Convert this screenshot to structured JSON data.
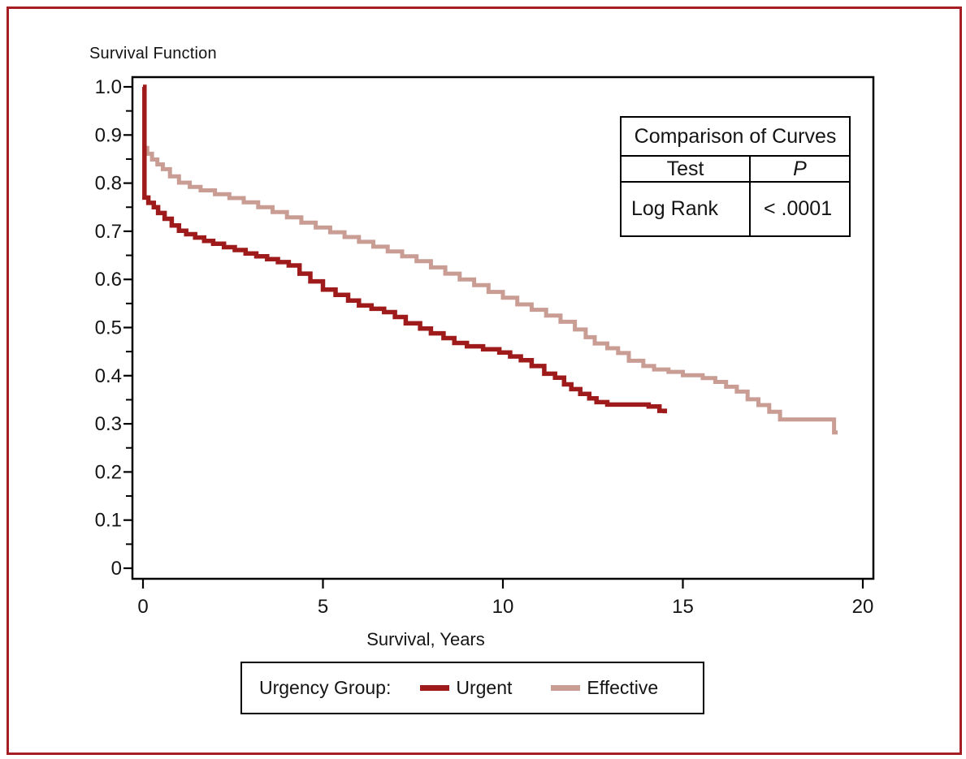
{
  "figure": {
    "title": "Survival Function",
    "border_color": "#a51e23",
    "background": "#ffffff"
  },
  "chart_data": {
    "type": "line",
    "subtype": "kaplan-meier-step",
    "title": "Survival Function",
    "xlabel": "Survival, Years",
    "ylabel": "",
    "xlim": [
      0,
      20
    ],
    "ylim": [
      0,
      1.0
    ],
    "grid": false,
    "legend_position": "bottom",
    "x_ticks": [
      {
        "value": 0,
        "label": "0"
      },
      {
        "value": 5,
        "label": "5"
      },
      {
        "value": 10,
        "label": "10"
      },
      {
        "value": 15,
        "label": "15"
      },
      {
        "value": 20,
        "label": "20"
      }
    ],
    "y_ticks": [
      {
        "value": 0,
        "label": "0"
      },
      {
        "value": 0.1,
        "label": "0.1"
      },
      {
        "value": 0.2,
        "label": "0.2"
      },
      {
        "value": 0.3,
        "label": "0.3"
      },
      {
        "value": 0.4,
        "label": "0.4"
      },
      {
        "value": 0.5,
        "label": "0.5"
      },
      {
        "value": 0.6,
        "label": "0.6"
      },
      {
        "value": 0.7,
        "label": "0.7"
      },
      {
        "value": 0.8,
        "label": "0.8"
      },
      {
        "value": 0.9,
        "label": "0.9"
      },
      {
        "value": 1.0,
        "label": "1.0"
      }
    ],
    "y_minor_ticks": [
      0.05,
      0.15,
      0.25,
      0.35,
      0.45,
      0.55,
      0.65,
      0.75,
      0.85,
      0.95
    ],
    "series": [
      {
        "name": "Effective",
        "color": "#c99c94",
        "points": [
          [
            0,
            1.0
          ],
          [
            0.04,
            0.873
          ],
          [
            0.12,
            0.861
          ],
          [
            0.25,
            0.849
          ],
          [
            0.4,
            0.839
          ],
          [
            0.55,
            0.829
          ],
          [
            0.75,
            0.814
          ],
          [
            1.0,
            0.801
          ],
          [
            1.3,
            0.792
          ],
          [
            1.6,
            0.785
          ],
          [
            2.0,
            0.777
          ],
          [
            2.4,
            0.769
          ],
          [
            2.8,
            0.76
          ],
          [
            3.2,
            0.75
          ],
          [
            3.6,
            0.74
          ],
          [
            4.0,
            0.729
          ],
          [
            4.4,
            0.718
          ],
          [
            4.8,
            0.708
          ],
          [
            5.2,
            0.698
          ],
          [
            5.6,
            0.688
          ],
          [
            6.0,
            0.678
          ],
          [
            6.4,
            0.668
          ],
          [
            6.8,
            0.658
          ],
          [
            7.2,
            0.648
          ],
          [
            7.6,
            0.638
          ],
          [
            8.0,
            0.625
          ],
          [
            8.4,
            0.612
          ],
          [
            8.8,
            0.6
          ],
          [
            9.2,
            0.588
          ],
          [
            9.6,
            0.574
          ],
          [
            10.0,
            0.562
          ],
          [
            10.4,
            0.548
          ],
          [
            10.8,
            0.537
          ],
          [
            11.2,
            0.525
          ],
          [
            11.6,
            0.512
          ],
          [
            12.0,
            0.496
          ],
          [
            12.3,
            0.48
          ],
          [
            12.55,
            0.467
          ],
          [
            12.9,
            0.457
          ],
          [
            13.2,
            0.447
          ],
          [
            13.5,
            0.431
          ],
          [
            13.9,
            0.42
          ],
          [
            14.2,
            0.413
          ],
          [
            14.6,
            0.408
          ],
          [
            15.0,
            0.401
          ],
          [
            15.55,
            0.395
          ],
          [
            15.9,
            0.387
          ],
          [
            16.2,
            0.377
          ],
          [
            16.5,
            0.367
          ],
          [
            16.8,
            0.351
          ],
          [
            17.1,
            0.339
          ],
          [
            17.4,
            0.325
          ],
          [
            17.7,
            0.309
          ],
          [
            19.15,
            0.309
          ],
          [
            19.2,
            0.282
          ],
          [
            19.3,
            0.282
          ]
        ]
      },
      {
        "name": "Urgent",
        "color": "#9f1b1b",
        "points": [
          [
            0,
            1.0
          ],
          [
            0.04,
            0.77
          ],
          [
            0.15,
            0.759
          ],
          [
            0.3,
            0.75
          ],
          [
            0.42,
            0.738
          ],
          [
            0.6,
            0.726
          ],
          [
            0.8,
            0.712
          ],
          [
            1.0,
            0.701
          ],
          [
            1.2,
            0.694
          ],
          [
            1.45,
            0.687
          ],
          [
            1.7,
            0.68
          ],
          [
            1.95,
            0.674
          ],
          [
            2.25,
            0.667
          ],
          [
            2.55,
            0.661
          ],
          [
            2.85,
            0.654
          ],
          [
            3.15,
            0.648
          ],
          [
            3.45,
            0.642
          ],
          [
            3.75,
            0.636
          ],
          [
            4.05,
            0.629
          ],
          [
            4.35,
            0.612
          ],
          [
            4.65,
            0.596
          ],
          [
            5.0,
            0.579
          ],
          [
            5.35,
            0.568
          ],
          [
            5.7,
            0.556
          ],
          [
            6.0,
            0.546
          ],
          [
            6.35,
            0.539
          ],
          [
            6.7,
            0.532
          ],
          [
            7.0,
            0.522
          ],
          [
            7.3,
            0.509
          ],
          [
            7.7,
            0.498
          ],
          [
            8.0,
            0.488
          ],
          [
            8.35,
            0.478
          ],
          [
            8.65,
            0.468
          ],
          [
            9.0,
            0.461
          ],
          [
            9.45,
            0.455
          ],
          [
            9.9,
            0.448
          ],
          [
            10.2,
            0.44
          ],
          [
            10.5,
            0.432
          ],
          [
            10.8,
            0.42
          ],
          [
            11.15,
            0.404
          ],
          [
            11.45,
            0.396
          ],
          [
            11.7,
            0.382
          ],
          [
            11.9,
            0.372
          ],
          [
            12.15,
            0.362
          ],
          [
            12.4,
            0.353
          ],
          [
            12.6,
            0.345
          ],
          [
            12.9,
            0.34
          ],
          [
            14.05,
            0.336
          ],
          [
            14.35,
            0.327
          ],
          [
            14.5,
            0.322
          ]
        ]
      }
    ]
  },
  "comparison_table": {
    "title": "Comparison of Curves",
    "columns": [
      "Test",
      "P"
    ],
    "rows": [
      [
        "Log Rank",
        "< .0001"
      ]
    ]
  },
  "legend": {
    "group_label": "Urgency Group:",
    "items": [
      {
        "label": "Urgent",
        "color": "#9f1b1b"
      },
      {
        "label": "Effective",
        "color": "#c99c94"
      }
    ]
  }
}
